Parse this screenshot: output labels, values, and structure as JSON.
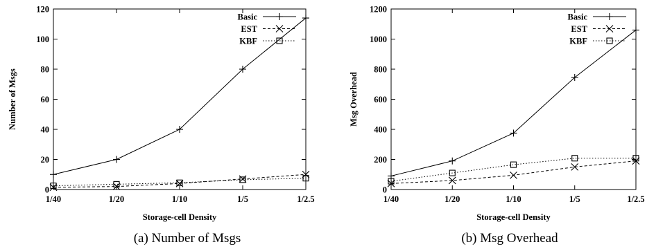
{
  "chart_data": [
    {
      "type": "line",
      "caption": "(a) Number of Msgs",
      "xlabel": "Storage-cell Density",
      "ylabel": "Number of Msgs",
      "categories": [
        "1/40",
        "1/20",
        "1/10",
        "1/5",
        "1/2.5"
      ],
      "ylim": [
        0,
        120
      ],
      "yticks": [
        0,
        20,
        40,
        60,
        80,
        100,
        120
      ],
      "legend_position": "top-right",
      "grid": false,
      "series": [
        {
          "name": "Basic",
          "marker": "plus",
          "dash": "solid",
          "values": [
            10,
            20,
            40,
            80,
            114
          ]
        },
        {
          "name": "EST",
          "marker": "cross",
          "dash": "dashed",
          "values": [
            1.5,
            2,
            4,
            7,
            10
          ]
        },
        {
          "name": "KBF",
          "marker": "square",
          "dash": "dotted",
          "values": [
            2.5,
            3.5,
            4.5,
            6.5,
            7.5
          ]
        }
      ]
    },
    {
      "type": "line",
      "caption": "(b) Msg Overhead",
      "xlabel": "Storage-cell Density",
      "ylabel": "Msg Overhead",
      "categories": [
        "1/40",
        "1/20",
        "1/10",
        "1/5",
        "1/2.5"
      ],
      "ylim": [
        0,
        1200
      ],
      "yticks": [
        0,
        200,
        400,
        600,
        800,
        1000,
        1200
      ],
      "legend_position": "top-right",
      "grid": false,
      "series": [
        {
          "name": "Basic",
          "marker": "plus",
          "dash": "solid",
          "values": [
            90,
            190,
            375,
            745,
            1060
          ]
        },
        {
          "name": "EST",
          "marker": "cross",
          "dash": "dashed",
          "values": [
            40,
            60,
            95,
            150,
            190
          ]
        },
        {
          "name": "KBF",
          "marker": "square",
          "dash": "dotted",
          "values": [
            55,
            110,
            165,
            208,
            208
          ]
        }
      ]
    }
  ]
}
